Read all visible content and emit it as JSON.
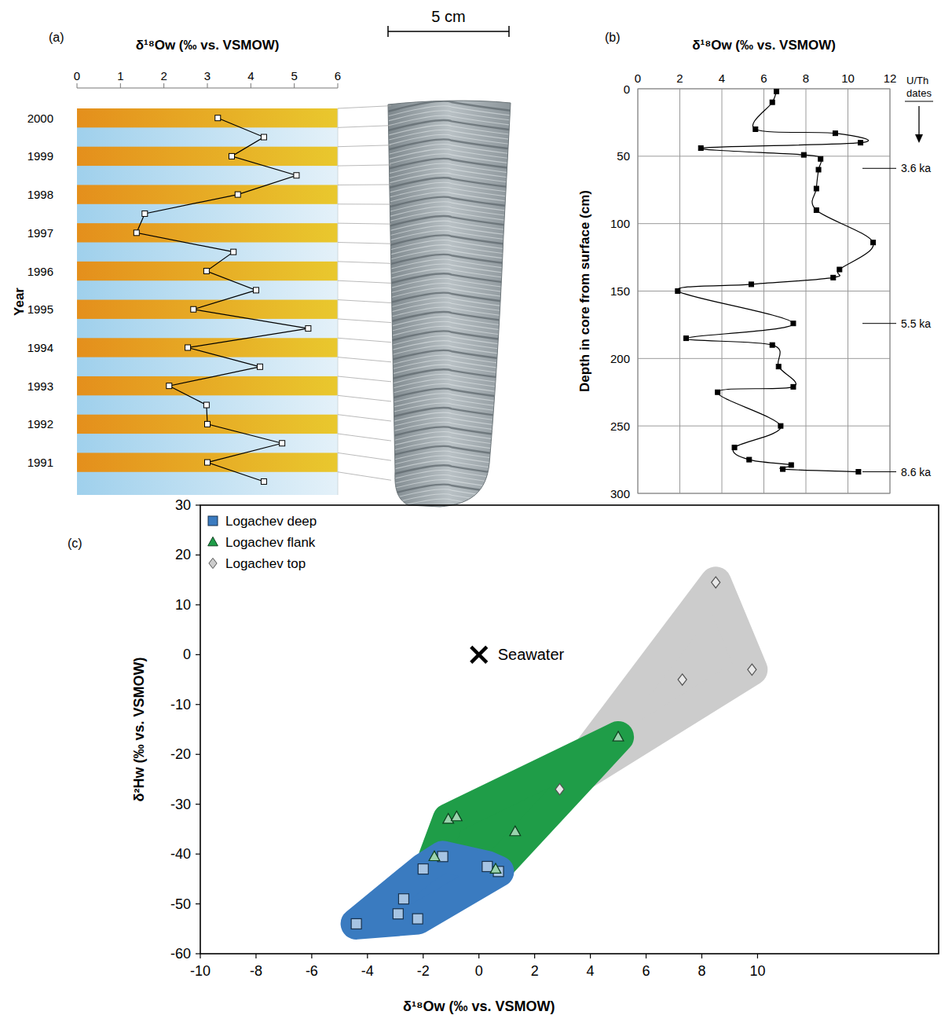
{
  "chart_data": [
    {
      "type": "line",
      "title": "(a)",
      "x_label": "δ¹⁸Ow (‰ vs. VSMOW)",
      "y_label": "Year",
      "orientation": "horizontal",
      "y": [
        2000,
        1999.5,
        1999,
        1998.5,
        1998,
        1997.5,
        1997,
        1996.5,
        1996,
        1995.5,
        1995,
        1994.5,
        1994,
        1993.5,
        1993,
        1992.5,
        1992,
        1991.5,
        1991,
        1990.5
      ],
      "series": [
        {
          "values": [
            3.24,
            4.3,
            3.56,
            5.05,
            3.7,
            1.56,
            1.37,
            3.6,
            2.98,
            4.12,
            2.68,
            5.32,
            2.55,
            4.21,
            2.12,
            2.98,
            3.0,
            4.72,
            3.0,
            4.3
          ],
          "color": "#000000",
          "marker": "square"
        }
      ],
      "xlim": [
        0,
        6
      ],
      "xticks": [
        0,
        1,
        2,
        3,
        4,
        5,
        6
      ],
      "ylim": [
        1990.15,
        2000.25
      ],
      "yticks": [
        2000,
        1999,
        1998,
        1997,
        1996,
        1995,
        1994,
        1993,
        1992,
        1991
      ],
      "grid": false,
      "annotations": [
        {
          "label": "5 cm"
        }
      ]
    },
    {
      "type": "line",
      "title": "(b)",
      "x_label": "δ¹⁸Ow (‰ vs. VSMOW)",
      "y_label": "Depth in core from surface (cm)",
      "orientation": "horizontal",
      "y": [
        2,
        10,
        30,
        33,
        40,
        44,
        49,
        52,
        60,
        74,
        90,
        114,
        134,
        140,
        145,
        150,
        174,
        185,
        190,
        206,
        221,
        225,
        250,
        266,
        275,
        279,
        282,
        284
      ],
      "series": [
        {
          "values": [
            6.6,
            6.4,
            5.6,
            9.4,
            10.6,
            3.0,
            7.9,
            8.7,
            8.6,
            8.5,
            8.5,
            11.2,
            9.6,
            9.3,
            5.4,
            1.9,
            7.4,
            2.3,
            6.4,
            6.7,
            7.4,
            3.8,
            6.8,
            4.6,
            5.3,
            7.3,
            6.9,
            10.5
          ],
          "color": "#000000",
          "marker": "square"
        }
      ],
      "xlim": [
        0,
        12
      ],
      "xticks": [
        0,
        2,
        4,
        6,
        8,
        10,
        12
      ],
      "ylim": [
        300,
        0
      ],
      "yticks": [
        0,
        50,
        100,
        150,
        200,
        250,
        300
      ],
      "grid": true,
      "annotations": [
        {
          "label": "U/Th dates"
        },
        {
          "y": 59,
          "label": "3.6 ka"
        },
        {
          "y": 174,
          "label": "5.5 ka"
        },
        {
          "y": 284,
          "label": "8.6 ka"
        }
      ]
    },
    {
      "type": "scatter",
      "title": "(c)",
      "x_label": "δ¹⁸Ow (‰ vs. VSMOW)",
      "y_label": "δ²Hw (‰ vs. VSMOW)",
      "xlim": [
        -10,
        16.5
      ],
      "xticks": [
        -10,
        -8,
        -6,
        -4,
        -2,
        0,
        2,
        4,
        6,
        8,
        10
      ],
      "ylim": [
        -60,
        30
      ],
      "yticks": [
        -60,
        -50,
        -40,
        -30,
        -20,
        -10,
        0,
        10,
        20,
        30
      ],
      "grid": false,
      "legend": "top-left",
      "series": [
        {
          "name": "Logachev deep",
          "color": "#3a7bc0",
          "marker": "square",
          "x": [
            -4.4,
            -2.9,
            -2.7,
            -2.2,
            -2.0,
            -1.3,
            0.3,
            0.7
          ],
          "values": [
            -54,
            -52,
            -49,
            -53,
            -43,
            -40.5,
            -42.5,
            -43.5
          ]
        },
        {
          "name": "Logachev flank",
          "color": "#1f9d48",
          "marker": "triangle",
          "x": [
            -1.1,
            -0.8,
            -1.6,
            1.3,
            0.6,
            5.0
          ],
          "values": [
            -33,
            -32.5,
            -40.5,
            -35.5,
            -43,
            -16.5
          ]
        },
        {
          "name": "Logachev top",
          "color": "#cccccc",
          "marker": "diamond",
          "x": [
            2.9,
            7.3,
            8.5,
            9.8
          ],
          "values": [
            -27,
            -5,
            14.5,
            -3
          ]
        }
      ],
      "annotations": [
        {
          "x": 0,
          "y": 0,
          "label": "Seawater",
          "marker": "x"
        }
      ]
    }
  ]
}
